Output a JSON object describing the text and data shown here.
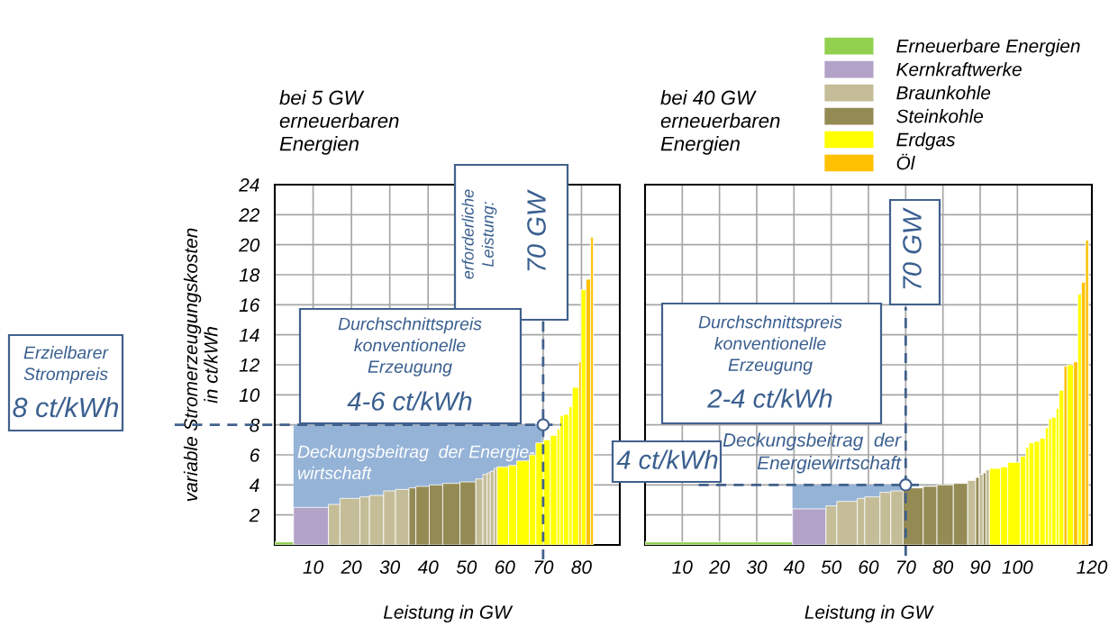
{
  "chart_data": [
    {
      "type": "histogram",
      "title": "bei 5 GW\nerneuerbaren\nEnergien",
      "xlabel": "Leistung in GW",
      "ylabel": "variable Stromerzeugungskosten\nin ct/kWh",
      "xlim": [
        0,
        90
      ],
      "ylim": [
        0,
        24
      ],
      "xticks": [
        10,
        20,
        30,
        40,
        50,
        60,
        70,
        80
      ],
      "yticks": [
        2,
        4,
        6,
        8,
        10,
        12,
        14,
        16,
        18,
        20,
        22,
        24
      ],
      "grid": true,
      "series": [
        {
          "type": "area",
          "color": "#95b3d7",
          "x": [
            4.9,
            69.7
          ],
          "values": [
            8,
            8
          ]
        },
        {
          "color": "#92d050",
          "bins": [
            0,
            4.9
          ],
          "values": [
            0.2
          ]
        },
        {
          "color": "#b3a2c7",
          "bins": [
            4.9,
            14.0
          ],
          "values": [
            2.5
          ]
        },
        {
          "color": "#c4bd97",
          "bins": [
            14.0,
            17.0,
            22.2,
            24.7,
            28.4,
            31.5,
            35.0,
            52.4,
            54.3,
            55.4,
            56.2,
            57.2,
            58.0
          ],
          "values": [
            2.7,
            3.1,
            3.2,
            3.3,
            3.6,
            3.7,
            null,
            4.4,
            4.7,
            4.8,
            4.9,
            5.1
          ]
        },
        {
          "color": "#948a54",
          "bins": [
            35.0,
            36.8,
            40.3,
            43.8,
            48.3,
            52.4
          ],
          "values": [
            3.8,
            3.9,
            4.0,
            4.1,
            4.2
          ]
        },
        {
          "color": "#ffff00",
          "bins": [
            58.0,
            61.0,
            63.1,
            66.4,
            68.1,
            70.1,
            71.9,
            73.6,
            74.4,
            75.3,
            76.7,
            77.6,
            79.3,
            79.9,
            81.2
          ],
          "values": [
            5.2,
            5.3,
            5.6,
            6.0,
            6.8,
            7.0,
            7.3,
            7.7,
            8.6,
            8.7,
            9.2,
            10.5,
            null,
            17.0
          ]
        },
        {
          "color": "#ffc000",
          "bins": [
            79.3,
            79.9,
            81.2,
            82.4,
            83.1
          ],
          "values": [
            12.2,
            null,
            17.7,
            20.5
          ]
        },
        {
          "type": "scatter",
          "color": "#ffffff",
          "marker": "circle",
          "x": [
            70
          ],
          "values": [
            8
          ]
        }
      ],
      "ref_lines": [
        {
          "axis": "y",
          "value": 8,
          "color": "#41618c",
          "line_style": "dashed"
        },
        {
          "axis": "x",
          "value": 70,
          "color": "#41618c",
          "line_style": "dashed"
        }
      ],
      "annotations": [
        "erforderliche\nLeistung:",
        "70 GW",
        "Durchschnittspreis\nkonventionelle\nErzeugung",
        "4-6 ct/kWh",
        "Deckungsbeitrag  der Energie-\nwirtschaft",
        "Erzielbarer\nStrompreis",
        "8 ct/kWh"
      ]
    },
    {
      "type": "histogram",
      "title": "bei 40 GW\nerneuerbaren\nEnergien",
      "xlabel": "Leistung in GW",
      "xlim": [
        0,
        120
      ],
      "ylim": [
        0,
        24
      ],
      "xticks": [
        10,
        20,
        30,
        40,
        50,
        60,
        70,
        80,
        90,
        100,
        120
      ],
      "yticks": [
        2,
        4,
        6,
        8,
        10,
        12,
        14,
        16,
        18,
        20,
        22,
        24
      ],
      "grid": true,
      "tick_labels": "x",
      "legend": "top right",
      "series": [
        {
          "type": "area",
          "color": "#95b3d7",
          "x": [
            39.6,
            69.3
          ],
          "values": [
            4,
            4
          ]
        },
        {
          "name": "Erneuerbare Energien",
          "color": "#92d050",
          "bins": [
            0,
            39.6
          ],
          "values": [
            0.2
          ]
        },
        {
          "name": "Kernkraftwerke",
          "color": "#b3a2c7",
          "bins": [
            39.6,
            48.6
          ],
          "values": [
            2.4
          ]
        },
        {
          "name": "Braunkohle",
          "color": "#c4bd97",
          "bins": [
            48.6,
            51.5,
            57.0,
            59.0,
            63.1,
            66.0,
            69.3,
            86.6,
            88.8,
            89.7,
            90.8,
            91.5,
            92.5
          ],
          "values": [
            2.6,
            2.9,
            3.1,
            3.2,
            3.5,
            3.6,
            null,
            4.3,
            null,
            4.7,
            null,
            5.0
          ]
        },
        {
          "name": "Steinkohle",
          "color": "#948a54",
          "bins": [
            69.3,
            74.7,
            78.4,
            82.8,
            86.6,
            88.8,
            89.7,
            90.8,
            91.5
          ],
          "values": [
            3.8,
            3.9,
            4.0,
            4.1,
            null,
            4.5,
            null,
            4.8
          ]
        },
        {
          "name": "Erdgas",
          "color": "#ffff00",
          "bins": [
            92.5,
            95.5,
            97.4,
            100.8,
            102.3,
            103.1,
            104.5,
            106.0,
            107.5,
            108.4,
            109.2,
            110.4,
            111.2,
            112.5,
            113.3,
            115.1,
            116.2,
            117.2
          ],
          "values": [
            5.1,
            5.2,
            5.5,
            5.9,
            6.5,
            6.8,
            6.9,
            7.1,
            7.8,
            8.4,
            8.5,
            9.1,
            10.3,
            null,
            12.0,
            null,
            16.7
          ]
        },
        {
          "name": "Öl",
          "color": "#ffc000",
          "bins": [
            112.5,
            113.3,
            115.1,
            116.2,
            117.2,
            118.3,
            119.1
          ],
          "values": [
            11.9,
            null,
            12.2,
            null,
            17.5,
            20.3
          ]
        },
        {
          "type": "scatter",
          "color": "#ffffff",
          "marker": "circle",
          "x": [
            70
          ],
          "values": [
            4
          ]
        }
      ],
      "ref_lines": [
        {
          "axis": "y",
          "value": 4,
          "color": "#41618c",
          "line_style": "dashed"
        },
        {
          "axis": "x",
          "value": 70,
          "color": "#41618c",
          "line_style": "dashed"
        }
      ],
      "annotations": [
        "70 GW",
        "Durchschnittspreis\nkonventionelle\nErzeugung",
        "2-4 ct/kWh",
        "Deckungsbeitrag  der\nEnergiewirtschaft",
        "4 ct/kWh"
      ]
    }
  ]
}
